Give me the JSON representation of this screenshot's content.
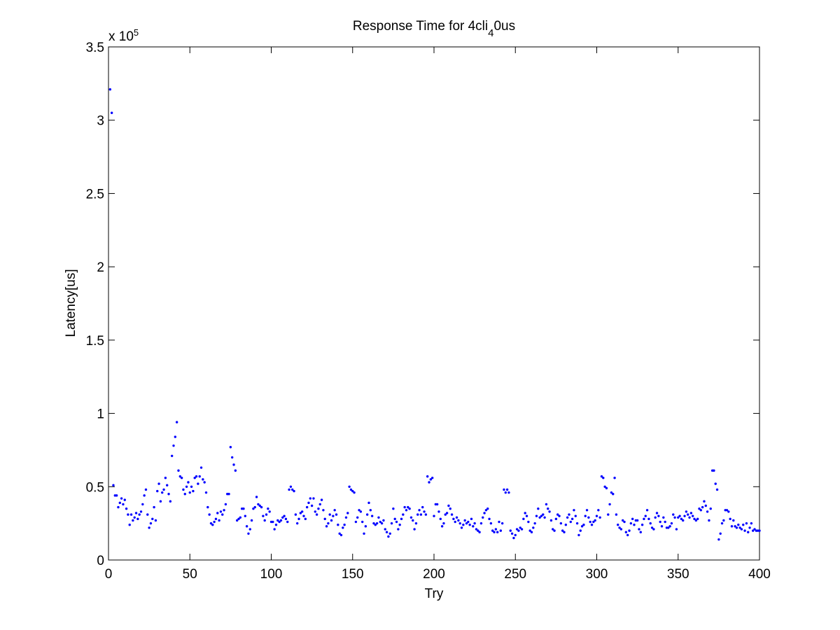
{
  "chart_data": {
    "type": "scatter",
    "title": "Response Time for 4cli",
    "title_subscript": "4",
    "title_suffix": "0us",
    "xlabel": "Try",
    "ylabel": "Latency[us]",
    "y_multiplier": "x 10",
    "y_multiplier_exponent": "5",
    "color": "#0000ff",
    "xlim": [
      0,
      400
    ],
    "xticks": [
      0,
      50,
      100,
      150,
      200,
      250,
      300,
      350,
      400
    ],
    "ylim": [
      0,
      3.5
    ],
    "yticks": [
      0,
      0.5,
      1,
      1.5,
      2,
      2.5,
      3,
      3.5
    ],
    "x": [
      1,
      2,
      3,
      4,
      5,
      6,
      7,
      8,
      9,
      10,
      11,
      12,
      13,
      14,
      15,
      16,
      17,
      18,
      19,
      20,
      21,
      22,
      23,
      24,
      25,
      26,
      27,
      28,
      29,
      30,
      31,
      32,
      33,
      34,
      35,
      36,
      37,
      38,
      39,
      40,
      41,
      42,
      43,
      44,
      45,
      46,
      47,
      48,
      49,
      50,
      51,
      52,
      53,
      54,
      55,
      56,
      57,
      58,
      59,
      60,
      61,
      62,
      63,
      64,
      65,
      66,
      67,
      68,
      69,
      70,
      71,
      72,
      73,
      74,
      75,
      76,
      77,
      78,
      79,
      80,
      81,
      82,
      83,
      84,
      85,
      86,
      87,
      88,
      89,
      90,
      91,
      92,
      93,
      94,
      95,
      96,
      97,
      98,
      99,
      100,
      101,
      102,
      103,
      104,
      105,
      106,
      107,
      108,
      109,
      110,
      111,
      112,
      113,
      114,
      115,
      116,
      117,
      118,
      119,
      120,
      121,
      122,
      123,
      124,
      125,
      126,
      127,
      128,
      129,
      130,
      131,
      132,
      133,
      134,
      135,
      136,
      137,
      138,
      139,
      140,
      141,
      142,
      143,
      144,
      145,
      146,
      147,
      148,
      149,
      150,
      151,
      152,
      153,
      154,
      155,
      156,
      157,
      158,
      159,
      160,
      161,
      162,
      163,
      164,
      165,
      166,
      167,
      168,
      169,
      170,
      171,
      172,
      173,
      174,
      175,
      176,
      177,
      178,
      179,
      180,
      181,
      182,
      183,
      184,
      185,
      186,
      187,
      188,
      189,
      190,
      191,
      192,
      193,
      194,
      195,
      196,
      197,
      198,
      199,
      200,
      201,
      202,
      203,
      204,
      205,
      206,
      207,
      208,
      209,
      210,
      211,
      212,
      213,
      214,
      215,
      216,
      217,
      218,
      219,
      220,
      221,
      222,
      223,
      224,
      225,
      226,
      227,
      228,
      229,
      230,
      231,
      232,
      233,
      234,
      235,
      236,
      237,
      238,
      239,
      240,
      241,
      242,
      243,
      244,
      245,
      246,
      247,
      248,
      249,
      250,
      251,
      252,
      253,
      254,
      255,
      256,
      257,
      258,
      259,
      260,
      261,
      262,
      263,
      264,
      265,
      266,
      267,
      268,
      269,
      270,
      271,
      272,
      273,
      274,
      275,
      276,
      277,
      278,
      279,
      280,
      281,
      282,
      283,
      284,
      285,
      286,
      287,
      288,
      289,
      290,
      291,
      292,
      293,
      294,
      295,
      296,
      297,
      298,
      299,
      300,
      301,
      302,
      303,
      304,
      305,
      306,
      307,
      308,
      309,
      310,
      311,
      312,
      313,
      314,
      315,
      316,
      317,
      318,
      319,
      320,
      321,
      322,
      323,
      324,
      325,
      326,
      327,
      328,
      329,
      330,
      331,
      332,
      333,
      334,
      335,
      336,
      337,
      338,
      339,
      340,
      341,
      342,
      343,
      344,
      345,
      346,
      347,
      348,
      349,
      350,
      351,
      352,
      353,
      354,
      355,
      356,
      357,
      358,
      359,
      360,
      361,
      362,
      363,
      364,
      365,
      366,
      367,
      368,
      369,
      370,
      371,
      372,
      373,
      374,
      375,
      376,
      377,
      378,
      379,
      380,
      381,
      382,
      383,
      384,
      385,
      386,
      387,
      388,
      389,
      390,
      391,
      392,
      393,
      394,
      395,
      396,
      397,
      398,
      399,
      400
    ],
    "values": [
      3.21,
      3.05,
      0.51,
      0.44,
      0.44,
      0.36,
      0.39,
      0.42,
      0.38,
      0.41,
      0.35,
      0.31,
      0.24,
      0.31,
      0.27,
      0.29,
      0.32,
      0.28,
      0.31,
      0.33,
      0.38,
      0.44,
      0.48,
      0.31,
      0.22,
      0.25,
      0.28,
      0.36,
      0.27,
      0.47,
      0.52,
      0.4,
      0.46,
      0.48,
      0.56,
      0.51,
      0.45,
      0.4,
      0.71,
      0.78,
      0.84,
      0.94,
      0.61,
      0.57,
      0.56,
      0.48,
      0.45,
      0.5,
      0.53,
      0.46,
      0.5,
      0.47,
      0.56,
      0.57,
      0.52,
      0.57,
      0.63,
      0.55,
      0.53,
      0.46,
      0.36,
      0.31,
      0.25,
      0.24,
      0.26,
      0.28,
      0.32,
      0.27,
      0.33,
      0.31,
      0.34,
      0.38,
      0.45,
      0.45,
      0.77,
      0.7,
      0.65,
      0.61,
      0.27,
      0.28,
      0.29,
      0.35,
      0.35,
      0.3,
      0.23,
      0.18,
      0.21,
      0.27,
      0.35,
      0.36,
      0.43,
      0.38,
      0.37,
      0.36,
      0.3,
      0.27,
      0.31,
      0.35,
      0.33,
      0.26,
      0.26,
      0.21,
      0.24,
      0.27,
      0.26,
      0.27,
      0.29,
      0.3,
      0.28,
      0.26,
      0.48,
      0.5,
      0.48,
      0.47,
      0.31,
      0.25,
      0.28,
      0.32,
      0.33,
      0.3,
      0.28,
      0.36,
      0.39,
      0.42,
      0.37,
      0.42,
      0.33,
      0.31,
      0.35,
      0.38,
      0.41,
      0.34,
      0.28,
      0.23,
      0.25,
      0.31,
      0.27,
      0.3,
      0.34,
      0.31,
      0.24,
      0.18,
      0.17,
      0.22,
      0.24,
      0.29,
      0.32,
      0.5,
      0.48,
      0.47,
      0.46,
      0.26,
      0.29,
      0.34,
      0.33,
      0.26,
      0.18,
      0.23,
      0.31,
      0.39,
      0.34,
      0.3,
      0.25,
      0.24,
      0.25,
      0.29,
      0.26,
      0.25,
      0.27,
      0.21,
      0.19,
      0.16,
      0.18,
      0.25,
      0.35,
      0.28,
      0.26,
      0.21,
      0.24,
      0.28,
      0.31,
      0.36,
      0.34,
      0.36,
      0.35,
      0.29,
      0.27,
      0.21,
      0.25,
      0.31,
      0.34,
      0.31,
      0.36,
      0.33,
      0.31,
      0.57,
      0.53,
      0.55,
      0.56,
      0.3,
      0.38,
      0.38,
      0.33,
      0.28,
      0.23,
      0.25,
      0.31,
      0.32,
      0.37,
      0.35,
      0.31,
      0.28,
      0.26,
      0.29,
      0.27,
      0.25,
      0.22,
      0.24,
      0.27,
      0.25,
      0.26,
      0.24,
      0.28,
      0.23,
      0.25,
      0.21,
      0.2,
      0.19,
      0.25,
      0.29,
      0.32,
      0.34,
      0.35,
      0.28,
      0.25,
      0.2,
      0.19,
      0.21,
      0.19,
      0.26,
      0.2,
      0.25,
      0.48,
      0.46,
      0.48,
      0.46,
      0.2,
      0.18,
      0.15,
      0.17,
      0.21,
      0.2,
      0.22,
      0.21,
      0.28,
      0.32,
      0.3,
      0.26,
      0.2,
      0.19,
      0.22,
      0.25,
      0.3,
      0.35,
      0.29,
      0.3,
      0.31,
      0.29,
      0.38,
      0.35,
      0.33,
      0.27,
      0.21,
      0.2,
      0.28,
      0.31,
      0.3,
      0.25,
      0.2,
      0.19,
      0.24,
      0.29,
      0.31,
      0.26,
      0.28,
      0.34,
      0.3,
      0.25,
      0.17,
      0.2,
      0.23,
      0.24,
      0.3,
      0.34,
      0.29,
      0.26,
      0.24,
      0.26,
      0.27,
      0.3,
      0.34,
      0.29,
      0.57,
      0.56,
      0.5,
      0.49,
      0.31,
      0.38,
      0.46,
      0.45,
      0.56,
      0.31,
      0.24,
      0.22,
      0.21,
      0.27,
      0.26,
      0.19,
      0.17,
      0.2,
      0.25,
      0.28,
      0.24,
      0.27,
      0.27,
      0.21,
      0.19,
      0.24,
      0.28,
      0.3,
      0.34,
      0.28,
      0.25,
      0.22,
      0.21,
      0.29,
      0.32,
      0.3,
      0.26,
      0.23,
      0.29,
      0.26,
      0.22,
      0.22,
      0.23,
      0.25,
      0.31,
      0.29,
      0.21,
      0.29,
      0.3,
      0.28,
      0.27,
      0.3,
      0.33,
      0.31,
      0.29,
      0.32,
      0.3,
      0.28,
      0.27,
      0.28,
      0.35,
      0.34,
      0.36,
      0.4,
      0.37,
      0.33,
      0.27,
      0.35,
      0.61,
      0.61,
      0.52,
      0.48,
      0.14,
      0.18,
      0.25,
      0.27,
      0.34,
      0.34,
      0.33,
      0.28,
      0.23,
      0.27,
      0.23,
      0.22,
      0.24,
      0.22,
      0.21,
      0.24,
      0.2,
      0.25,
      0.19,
      0.22,
      0.25,
      0.2,
      0.21,
      0.2,
      0.2,
      0.2
    ]
  }
}
